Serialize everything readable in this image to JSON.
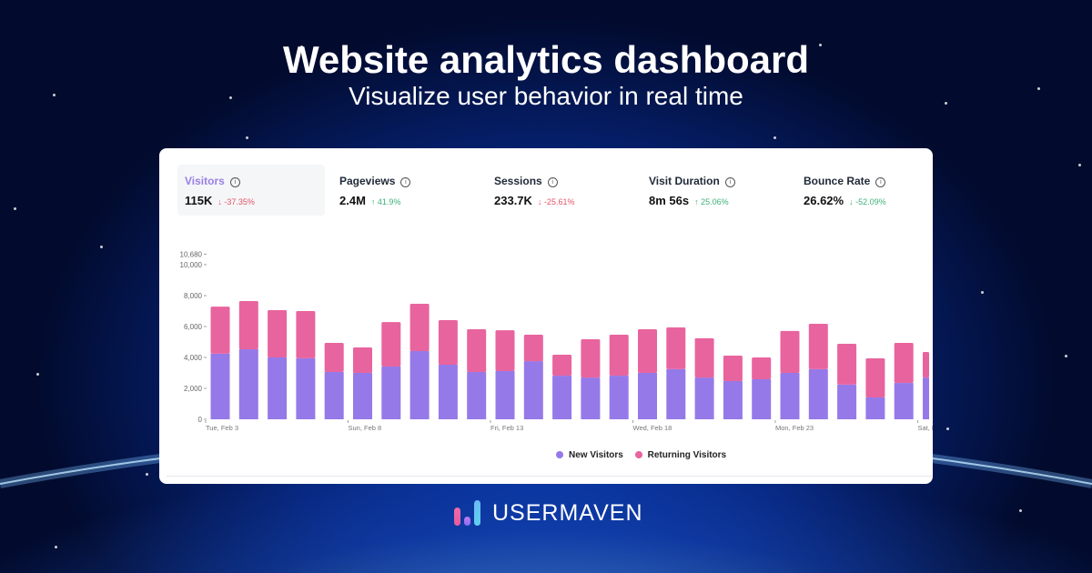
{
  "header": {
    "title": "Website analytics dashboard",
    "subtitle": "Visualize user behavior in real time"
  },
  "metrics": [
    {
      "label": "Visitors",
      "value": "115K",
      "change": "-37.35%",
      "direction": "down",
      "active": true
    },
    {
      "label": "Pageviews",
      "value": "2.4M",
      "change": "41.9%",
      "direction": "up"
    },
    {
      "label": "Sessions",
      "value": "233.7K",
      "change": "-25.61%",
      "direction": "down"
    },
    {
      "label": "Visit Duration",
      "value": "8m 56s",
      "change": "25.06%",
      "direction": "up"
    },
    {
      "label": "Bounce Rate",
      "value": "26.62%",
      "change": "-52.09%",
      "direction": "down-good"
    }
  ],
  "colors": {
    "new": "#9679e8",
    "returning": "#e8649e",
    "accent": "#9a80e6"
  },
  "chart_data": {
    "type": "bar",
    "stacked": true,
    "x_tick_labels": [
      "Tue, Feb 3",
      "Sun, Feb 8",
      "Fri, Feb 13",
      "Wed, Feb 18",
      "Mon, Feb 23",
      "Sat, F"
    ],
    "y_tick_labels": [
      "0",
      "2,000",
      "4,000",
      "6,000",
      "8,000",
      "10,000",
      "10,680"
    ],
    "y_ticks": [
      0,
      2000,
      4000,
      6000,
      8000,
      10000,
      10680
    ],
    "ylim": [
      0,
      10680
    ],
    "series": [
      {
        "name": "New Visitors",
        "values": [
          4240,
          4530,
          4000,
          3950,
          3060,
          3000,
          3410,
          4410,
          3530,
          3060,
          3120,
          3760,
          2820,
          2700,
          2820,
          3000,
          3240,
          2700,
          2470,
          2590,
          3000,
          3240,
          2240,
          1410,
          2350,
          2700
        ]
      },
      {
        "name": "Returning Visitors",
        "values": [
          3050,
          3120,
          3060,
          3050,
          1880,
          1650,
          2880,
          3060,
          2880,
          2760,
          2640,
          1710,
          1360,
          2480,
          2650,
          2820,
          2700,
          2540,
          1650,
          1410,
          2710,
          2940,
          2640,
          2530,
          2590,
          1650
        ]
      }
    ],
    "legend": "bottom-center"
  },
  "logo": {
    "text": "USERMAVEN"
  }
}
